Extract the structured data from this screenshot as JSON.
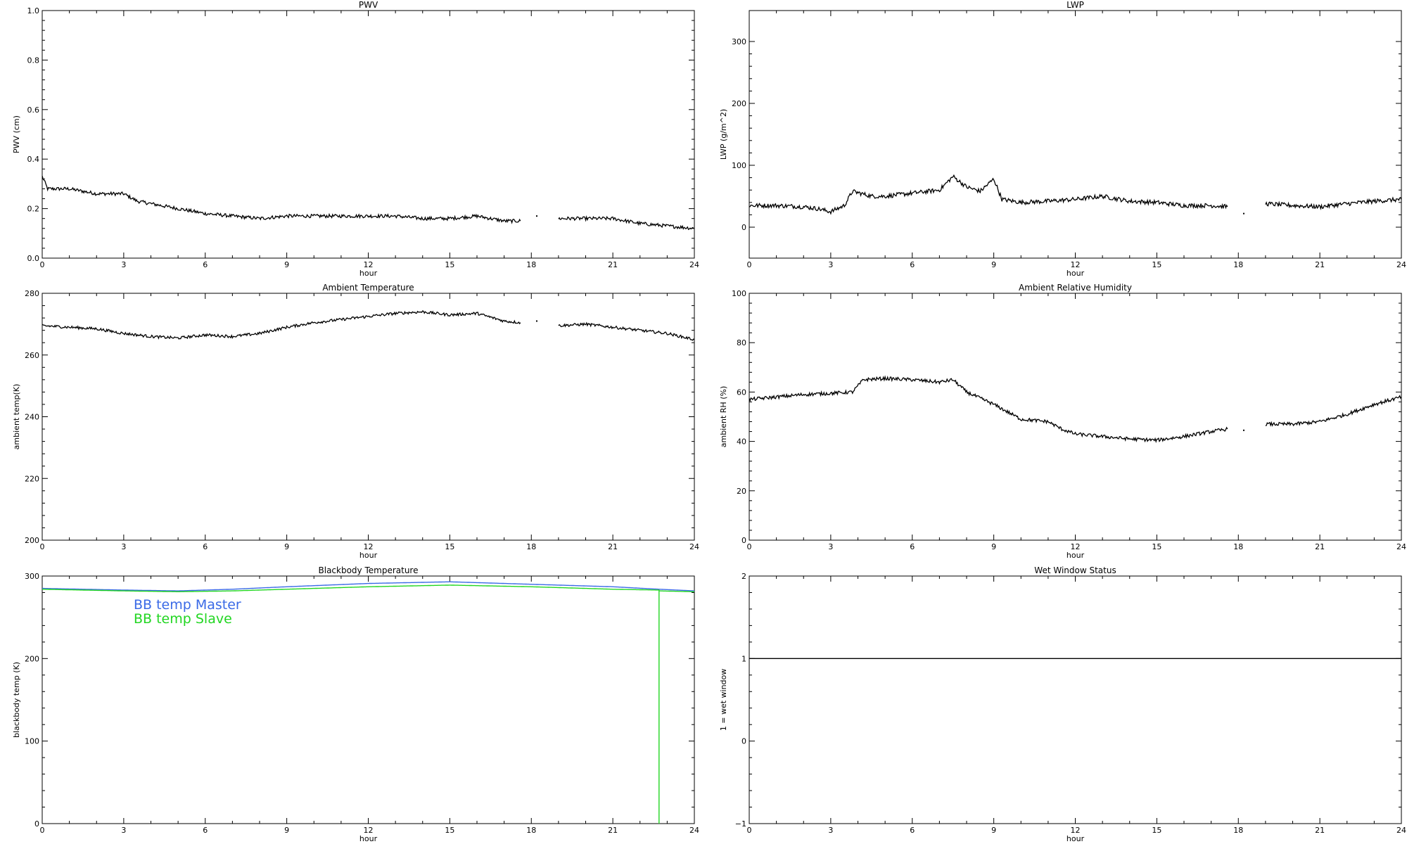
{
  "chart_data": [
    {
      "id": "pwv",
      "type": "line",
      "title": "PWV",
      "xlabel": "hour",
      "ylabel": "PWV (cm)",
      "xlim": [
        0,
        24
      ],
      "ylim": [
        0.0,
        1.0
      ],
      "xticks": [
        0,
        3,
        6,
        9,
        12,
        15,
        18,
        21,
        24
      ],
      "yticks": [
        0.0,
        0.2,
        0.4,
        0.6,
        0.8,
        1.0
      ],
      "ytick_labels": [
        "0.0",
        "0.2",
        "0.4",
        "0.6",
        "0.8",
        "1.0"
      ],
      "grid": false,
      "series": [
        {
          "color": "#000000",
          "noise": 0.007,
          "x": [
            0,
            0.2,
            1,
            2,
            3,
            3.5,
            4,
            5,
            6,
            7,
            8,
            9,
            10,
            11,
            12,
            13,
            14,
            15,
            16,
            17,
            17.6,
            null,
            18.2,
            null,
            19,
            20,
            21,
            22,
            23,
            24
          ],
          "y": [
            0.33,
            0.28,
            0.28,
            0.26,
            0.26,
            0.23,
            0.22,
            0.2,
            0.18,
            0.17,
            0.16,
            0.17,
            0.17,
            0.17,
            0.17,
            0.17,
            0.16,
            0.16,
            0.17,
            0.15,
            0.15,
            null,
            0.17,
            null,
            0.16,
            0.16,
            0.16,
            0.14,
            0.13,
            0.12
          ]
        }
      ]
    },
    {
      "id": "lwp",
      "type": "line",
      "title": "LWP",
      "xlabel": "hour",
      "ylabel": "LWP (g/m^2)",
      "xlim": [
        0,
        24
      ],
      "ylim": [
        -50,
        350
      ],
      "xticks": [
        0,
        3,
        6,
        9,
        12,
        15,
        18,
        21,
        24
      ],
      "yticks": [
        0,
        100,
        200,
        300
      ],
      "ytick_labels": [
        "0",
        "100",
        "200",
        "300"
      ],
      "grid": false,
      "series": [
        {
          "color": "#000000",
          "noise": 3.5,
          "x": [
            0,
            1,
            2,
            2.5,
            3,
            3.5,
            3.8,
            4.5,
            5,
            6,
            7,
            7.5,
            8,
            8.5,
            9,
            9.3,
            10,
            11,
            12,
            13,
            14,
            15,
            16,
            17,
            17.6,
            null,
            18.2,
            null,
            19,
            20,
            21,
            22,
            23,
            24
          ],
          "y": [
            35,
            35,
            33,
            30,
            25,
            35,
            58,
            50,
            50,
            55,
            60,
            82,
            65,
            58,
            78,
            45,
            40,
            42,
            45,
            50,
            42,
            40,
            35,
            35,
            33,
            null,
            22,
            null,
            38,
            35,
            33,
            38,
            42,
            45
          ]
        }
      ]
    },
    {
      "id": "ambient-temp",
      "type": "line",
      "title": "Ambient Temperature",
      "xlabel": "hour",
      "ylabel": "ambient temp(K)",
      "xlim": [
        0,
        24
      ],
      "ylim": [
        200,
        280
      ],
      "xticks": [
        0,
        3,
        6,
        9,
        12,
        15,
        18,
        21,
        24
      ],
      "yticks": [
        200,
        220,
        240,
        260,
        280
      ],
      "ytick_labels": [
        "200",
        "220",
        "240",
        "260",
        "280"
      ],
      "grid": false,
      "series": [
        {
          "color": "#000000",
          "noise": 0.45,
          "x": [
            0,
            2,
            3,
            4,
            5,
            6,
            7,
            8,
            9,
            10,
            11,
            12,
            13,
            14,
            15,
            16,
            17,
            17.6,
            null,
            18.2,
            null,
            19,
            20,
            21,
            22,
            23,
            24
          ],
          "y": [
            269.5,
            268.5,
            267,
            266,
            265.5,
            266.5,
            266,
            267,
            269,
            270.5,
            271.5,
            272.5,
            273.5,
            274,
            273,
            273.5,
            271,
            270.5,
            null,
            271,
            null,
            269.5,
            270,
            269,
            268,
            267,
            265
          ]
        }
      ]
    },
    {
      "id": "ambient-rh",
      "type": "line",
      "title": "Ambient Relative Humidity",
      "xlabel": "hour",
      "ylabel": "ambient RH (%)",
      "xlim": [
        0,
        24
      ],
      "ylim": [
        0,
        100
      ],
      "xticks": [
        0,
        3,
        6,
        9,
        12,
        15,
        18,
        21,
        24
      ],
      "yticks": [
        0,
        20,
        40,
        60,
        80,
        100
      ],
      "ytick_labels": [
        "0",
        "20",
        "40",
        "60",
        "80",
        "100"
      ],
      "grid": false,
      "series": [
        {
          "color": "#000000",
          "noise": 0.7,
          "x": [
            0,
            1,
            2,
            3,
            3.8,
            4.2,
            5,
            6,
            7,
            7.5,
            8,
            9,
            10,
            11,
            11.5,
            12,
            13,
            14,
            15,
            16,
            17,
            17.6,
            null,
            18.2,
            null,
            19,
            20,
            21,
            22,
            23,
            24
          ],
          "y": [
            57,
            58,
            59,
            59.5,
            60,
            65,
            65.5,
            65,
            64,
            65,
            60,
            55,
            49,
            48,
            45,
            43,
            42,
            41,
            40.5,
            42,
            44,
            45,
            null,
            44.5,
            null,
            47,
            47,
            48,
            51,
            55,
            58
          ]
        }
      ]
    },
    {
      "id": "blackbody-temp",
      "type": "line",
      "title": "Blackbody Temperature",
      "xlabel": "hour",
      "ylabel": "blackbody temp (K)",
      "xlim": [
        0,
        24
      ],
      "ylim": [
        0,
        300
      ],
      "xticks": [
        0,
        3,
        6,
        9,
        12,
        15,
        18,
        21,
        24
      ],
      "yticks": [
        0,
        100,
        200,
        300
      ],
      "ytick_labels": [
        "0",
        "100",
        "200",
        "300"
      ],
      "grid": false,
      "legend": "top-left",
      "series": [
        {
          "name": "BB temp Master",
          "color": "#3a6ae6",
          "noise": 0,
          "x": [
            0,
            3,
            5,
            7,
            9,
            12,
            15,
            18,
            21,
            22.7,
            24
          ],
          "y": [
            285,
            283,
            282,
            284,
            287,
            291,
            293,
            290,
            287,
            284,
            282
          ]
        },
        {
          "name": "BB temp Slave",
          "color": "#22d622",
          "noise": 0,
          "x": [
            0,
            3,
            5,
            7,
            9,
            12,
            15,
            18,
            21,
            22.7,
            22.7,
            22.7,
            24
          ],
          "y": [
            284,
            282,
            281,
            282,
            284,
            287,
            289,
            287,
            284,
            283,
            0,
            282,
            281
          ]
        }
      ]
    },
    {
      "id": "wet-window",
      "type": "line",
      "title": "Wet Window Status",
      "xlabel": "hour",
      "ylabel": "1 = wet window",
      "xlim": [
        0,
        24
      ],
      "ylim": [
        -1,
        2
      ],
      "xticks": [
        0,
        3,
        6,
        9,
        12,
        15,
        18,
        21,
        24
      ],
      "yticks": [
        -1,
        0,
        1,
        2
      ],
      "ytick_labels": [
        "−1",
        "0",
        "1",
        "2"
      ],
      "grid": false,
      "series": [
        {
          "color": "#000000",
          "noise": 0,
          "x": [
            0,
            24
          ],
          "y": [
            1,
            1
          ]
        }
      ]
    }
  ]
}
